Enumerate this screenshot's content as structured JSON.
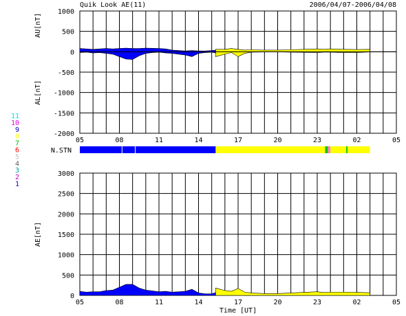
{
  "header": {
    "title": "Quik Look AE(11)",
    "date_range": "2006/04/07-2006/04/08"
  },
  "station_legend": {
    "entries": [
      {
        "label": "11",
        "color": "#00e0e0"
      },
      {
        "label": "10",
        "color": "#e000e0"
      },
      {
        "label": "9",
        "color": "#0000c0"
      },
      {
        "label": "8",
        "color": "#ffff00"
      },
      {
        "label": "7",
        "color": "#00c000"
      },
      {
        "label": "6",
        "color": "#ff0000"
      },
      {
        "label": "5",
        "color": "#c0c0c0"
      },
      {
        "label": "4",
        "color": "#606060"
      },
      {
        "label": "3",
        "color": "#00a0a0"
      },
      {
        "label": "2",
        "color": "#c000c0"
      },
      {
        "label": "1",
        "color": "#0000c0"
      }
    ]
  },
  "colors": {
    "blue": "#0000ff",
    "yellow": "#ffff00",
    "green": "#00c000",
    "pink": "#ff80c0",
    "grid": "#000000"
  },
  "chart_data": [
    {
      "type": "area",
      "name": "au-al",
      "ylabel_top": "AU[nT]",
      "ylabel_bottom": "AL[nT]",
      "ylim": [
        -2000,
        1000
      ],
      "yticks": [
        1000,
        500,
        0,
        -500,
        -1000,
        -1500,
        -2000
      ],
      "xlim": [
        5,
        29
      ],
      "xticks": [
        "05",
        "08",
        "11",
        "14",
        "17",
        "20",
        "23",
        "02",
        "05"
      ],
      "grid": true,
      "series_au": {
        "segments": [
          {
            "color": "blue",
            "x": [
              5.0,
              5.5,
              6.0,
              6.5,
              7.0,
              7.5,
              8.0,
              8.5,
              9.0,
              9.5,
              10.0,
              10.5,
              11.0,
              11.5,
              12.0,
              12.5,
              13.0,
              13.5,
              14.0,
              14.5,
              15.0,
              15.3
            ],
            "values": [
              80,
              70,
              60,
              70,
              80,
              70,
              80,
              90,
              80,
              80,
              90,
              85,
              80,
              70,
              40,
              30,
              20,
              30,
              20,
              20,
              30,
              40
            ]
          },
          {
            "color": "yellow",
            "x": [
              15.3,
              16.0,
              16.5,
              17.0,
              17.5,
              18.0,
              19.0,
              20.0,
              21.0,
              22.0,
              23.0,
              23.5,
              24.0,
              25.0,
              26.0,
              27.0
            ],
            "values": [
              60,
              60,
              80,
              60,
              40,
              50,
              40,
              40,
              50,
              60,
              70,
              60,
              70,
              60,
              55,
              60
            ]
          }
        ]
      },
      "series_al": {
        "segments": [
          {
            "color": "blue",
            "x": [
              5.0,
              5.5,
              6.0,
              6.5,
              7.0,
              7.5,
              8.0,
              8.5,
              9.0,
              9.5,
              10.0,
              10.5,
              11.0,
              11.5,
              12.0,
              12.5,
              13.0,
              13.5,
              14.0,
              14.5,
              15.0,
              15.3
            ],
            "values": [
              -20,
              -10,
              -30,
              -20,
              -40,
              -60,
              -120,
              -180,
              -190,
              -100,
              -40,
              -20,
              -10,
              -30,
              -40,
              -60,
              -80,
              -120,
              -40,
              -20,
              -10,
              -30
            ]
          },
          {
            "color": "yellow",
            "x": [
              15.3,
              16.0,
              16.5,
              17.0,
              17.5,
              18.0,
              19.0,
              20.0,
              21.0,
              22.0,
              23.0,
              23.5,
              24.0,
              25.0,
              26.0,
              27.0
            ],
            "values": [
              -120,
              -60,
              -20,
              -120,
              -40,
              -10,
              -5,
              -5,
              -10,
              -15,
              -20,
              -10,
              -10,
              -20,
              -20,
              -5
            ]
          }
        ]
      }
    },
    {
      "type": "heatmap",
      "name": "n-stn",
      "label": "N.STN",
      "xlim": [
        5,
        29
      ],
      "blocks": [
        {
          "x0": 5.0,
          "x1": 15.3,
          "color": "blue"
        },
        {
          "x0": 15.3,
          "x1": 23.6,
          "color": "yellow"
        },
        {
          "x0": 23.6,
          "x1": 23.8,
          "color": "green"
        },
        {
          "x0": 23.8,
          "x1": 24.0,
          "color": "pink"
        },
        {
          "x0": 24.0,
          "x1": 25.2,
          "color": "yellow"
        },
        {
          "x0": 25.2,
          "x1": 25.3,
          "color": "green"
        },
        {
          "x0": 25.3,
          "x1": 27.0,
          "color": "yellow"
        }
      ],
      "gaps": [
        8.2,
        9.2
      ]
    },
    {
      "type": "area",
      "name": "ae",
      "ylabel": "AE[nT]",
      "ylim": [
        0,
        3000
      ],
      "yticks": [
        3000,
        2500,
        2000,
        1500,
        1000,
        500,
        0
      ],
      "xlim": [
        5,
        29
      ],
      "xticks": [
        "05",
        "08",
        "11",
        "14",
        "17",
        "20",
        "23",
        "02",
        "05"
      ],
      "xlabel": "Time [UT]",
      "grid": true,
      "segments": [
        {
          "color": "blue",
          "x": [
            5.0,
            5.5,
            6.0,
            6.5,
            7.0,
            7.5,
            8.0,
            8.5,
            9.0,
            9.5,
            10.0,
            10.5,
            11.0,
            11.5,
            12.0,
            12.5,
            13.0,
            13.5,
            14.0,
            14.5,
            15.0,
            15.3
          ],
          "values": [
            100,
            80,
            90,
            90,
            120,
            130,
            200,
            270,
            270,
            180,
            130,
            110,
            90,
            100,
            80,
            90,
            100,
            150,
            60,
            40,
            40,
            70
          ]
        },
        {
          "color": "yellow",
          "x": [
            15.3,
            16.0,
            16.5,
            17.0,
            17.5,
            18.0,
            19.0,
            20.0,
            21.0,
            22.0,
            23.0,
            23.5,
            24.0,
            25.0,
            26.0,
            27.0
          ],
          "values": [
            180,
            120,
            100,
            170,
            80,
            60,
            45,
            45,
            60,
            75,
            90,
            70,
            80,
            80,
            75,
            65
          ]
        }
      ]
    }
  ]
}
